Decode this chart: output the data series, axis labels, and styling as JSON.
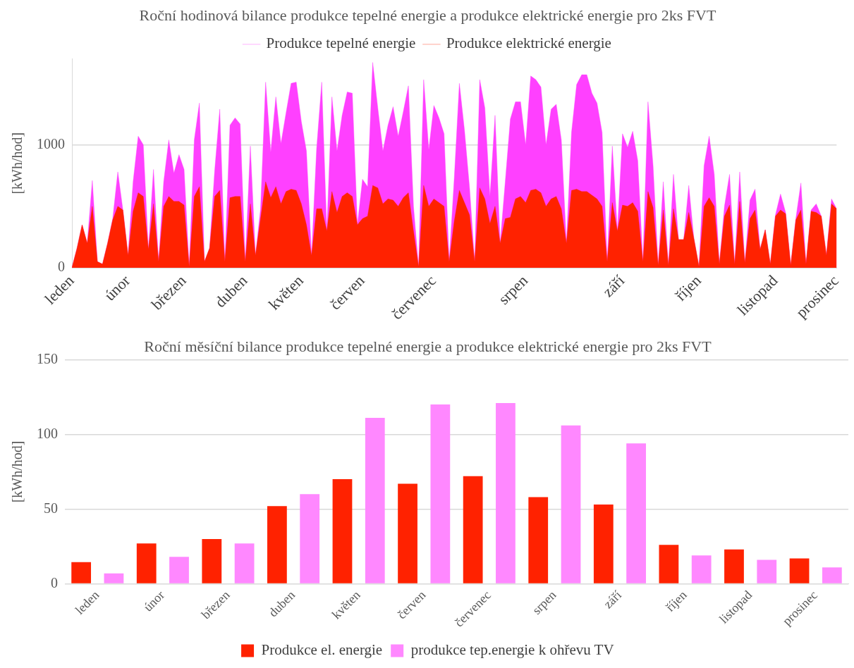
{
  "chart_data": [
    {
      "type": "area",
      "title": "Roční hodinová bilance produkce tepelné energie a produkce elektrické energie pro 2ks FVT",
      "ylabel": "[kWh/hod]",
      "legend": "top",
      "marker": "none",
      "grid": "y",
      "categories": [
        "leden",
        null,
        null,
        null,
        null,
        null,
        null,
        null,
        null,
        null,
        null,
        "únor",
        null,
        null,
        null,
        null,
        null,
        null,
        null,
        null,
        null,
        null,
        "březen",
        null,
        null,
        null,
        null,
        null,
        null,
        null,
        null,
        null,
        null,
        null,
        "duben",
        null,
        null,
        null,
        null,
        null,
        null,
        null,
        null,
        null,
        null,
        "květen",
        null,
        null,
        null,
        null,
        null,
        null,
        null,
        null,
        null,
        null,
        null,
        "červen",
        null,
        null,
        null,
        null,
        null,
        null,
        null,
        null,
        null,
        null,
        null,
        null,
        null,
        "červenec",
        null,
        null,
        null,
        null,
        null,
        null,
        null,
        null,
        null,
        null,
        null,
        null,
        null,
        null,
        null,
        null,
        null,
        "srpen",
        null,
        null,
        null,
        null,
        null,
        null,
        null,
        null,
        null,
        null,
        null,
        null,
        null,
        null,
        null,
        null,
        null,
        null,
        "září",
        null,
        null,
        null,
        null,
        null,
        null,
        null,
        null,
        null,
        null,
        null,
        null,
        null,
        null,
        "říjen",
        null,
        null,
        null,
        null,
        null,
        null,
        null,
        null,
        null,
        null,
        null,
        null,
        null,
        null,
        "listopad",
        null,
        null,
        null,
        null,
        null,
        null,
        null,
        null,
        null,
        null,
        null,
        "prosinec"
      ],
      "ylim": [
        0,
        1700
      ],
      "yticks": [
        0,
        1000
      ],
      "series": [
        {
          "name": "Produkce tepelné energie",
          "color": "#ff40ff",
          "values": [
            0,
            160,
            350,
            200,
            710,
            50,
            30,
            200,
            400,
            780,
            470,
            100,
            700,
            1070,
            1000,
            150,
            800,
            50,
            700,
            1040,
            770,
            920,
            800,
            10,
            1040,
            1340,
            50,
            160,
            790,
            1290,
            50,
            1160,
            1220,
            1170,
            50,
            990,
            100,
            480,
            1510,
            940,
            1390,
            1010,
            1260,
            1500,
            1510,
            1190,
            950,
            100,
            970,
            1510,
            300,
            1390,
            950,
            1240,
            1430,
            1420,
            350,
            720,
            660,
            1670,
            1300,
            950,
            1160,
            1310,
            1070,
            1270,
            1480,
            500,
            10,
            1530,
            960,
            1320,
            1220,
            1090,
            50,
            730,
            1500,
            1120,
            650,
            50,
            1530,
            1300,
            580,
            1240,
            200,
            700,
            1210,
            1350,
            1350,
            1000,
            1560,
            1530,
            1470,
            1000,
            1290,
            1330,
            1040,
            200,
            1100,
            1490,
            1570,
            1570,
            1420,
            1340,
            1100,
            50,
            990,
            300,
            1090,
            980,
            1110,
            870,
            50,
            1350,
            830,
            20,
            700,
            20,
            760,
            230,
            230,
            670,
            240,
            10,
            830,
            1070,
            760,
            30,
            500,
            760,
            30,
            780,
            40,
            550,
            640,
            150,
            310,
            30,
            430,
            600,
            450,
            20,
            400,
            690,
            30,
            470,
            520,
            420,
            100,
            560,
            480
          ]
        },
        {
          "name": "Produkce elektrické energie",
          "color": "#ff2200",
          "values": [
            0,
            160,
            350,
            200,
            500,
            50,
            30,
            200,
            390,
            500,
            470,
            100,
            460,
            610,
            580,
            150,
            520,
            50,
            500,
            580,
            540,
            540,
            510,
            10,
            580,
            660,
            50,
            160,
            580,
            630,
            50,
            570,
            580,
            580,
            50,
            520,
            100,
            400,
            700,
            570,
            660,
            520,
            620,
            640,
            630,
            520,
            350,
            100,
            480,
            480,
            300,
            620,
            450,
            580,
            610,
            580,
            350,
            400,
            420,
            670,
            650,
            520,
            560,
            550,
            500,
            570,
            610,
            300,
            10,
            670,
            500,
            560,
            530,
            500,
            50,
            380,
            630,
            530,
            430,
            50,
            650,
            560,
            360,
            500,
            200,
            400,
            410,
            560,
            580,
            530,
            630,
            640,
            610,
            500,
            560,
            580,
            480,
            200,
            630,
            640,
            620,
            620,
            590,
            560,
            500,
            50,
            530,
            300,
            510,
            500,
            530,
            460,
            50,
            620,
            490,
            20,
            470,
            20,
            480,
            230,
            230,
            450,
            240,
            10,
            500,
            570,
            500,
            30,
            420,
            510,
            30,
            540,
            40,
            400,
            470,
            150,
            310,
            30,
            420,
            470,
            440,
            20,
            390,
            470,
            30,
            460,
            450,
            420,
            100,
            520,
            480
          ]
        }
      ]
    },
    {
      "type": "bar",
      "title": "Roční měsíční bilance produkce tepelné energie a produkce elektrické energie pro 2ks FVT",
      "ylabel": "[kWh/hod]",
      "legend": "bottom",
      "grid": "y",
      "categories": [
        "leden",
        "únor",
        "březen",
        "duben",
        "květen",
        "červen",
        "červenec",
        "srpen",
        "září",
        "říjen",
        "listopad",
        "prosinec"
      ],
      "ylim": [
        0,
        150
      ],
      "yticks": [
        0,
        50,
        100,
        150
      ],
      "series": [
        {
          "name": "Produkce el. energie",
          "color": "#ff2200",
          "values": [
            14.5,
            27,
            30,
            52,
            70,
            67,
            72,
            58,
            53,
            26,
            23,
            17
          ]
        },
        {
          "name": "produkce tep.energie k ohřevu TV",
          "color": "#ff88ff",
          "values": [
            7,
            18,
            27,
            60,
            111,
            120,
            121,
            106,
            94,
            19,
            16,
            11
          ]
        }
      ]
    }
  ]
}
